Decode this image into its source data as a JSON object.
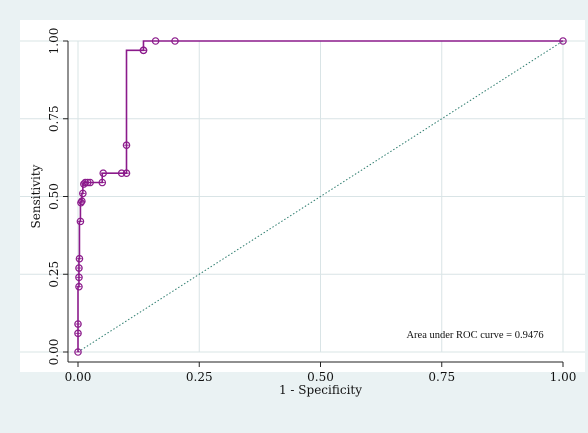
{
  "chart_data": {
    "type": "line",
    "title": "",
    "xlabel": "1 - Specificity",
    "ylabel": "Sensitivity",
    "xlim": [
      0,
      1
    ],
    "ylim": [
      0,
      1
    ],
    "xticks": [
      "0.00",
      "0.25",
      "0.50",
      "0.75",
      "1.00"
    ],
    "yticks": [
      "0.00",
      "0.25",
      "0.50",
      "0.75",
      "1.00"
    ],
    "grid": true,
    "annotation": "Area under ROC curve = 0.9476",
    "series": [
      {
        "style": "step line with circle markers",
        "x": [
          0.0,
          0.0,
          0.0,
          0.002,
          0.002,
          0.002,
          0.003,
          0.005,
          0.006,
          0.008,
          0.01,
          0.012,
          0.015,
          0.02,
          0.025,
          0.05,
          0.052,
          0.09,
          0.1,
          0.1,
          0.135,
          0.135,
          0.16,
          0.2,
          1.0
        ],
        "y": [
          0.0,
          0.06,
          0.09,
          0.21,
          0.24,
          0.27,
          0.3,
          0.42,
          0.48,
          0.485,
          0.51,
          0.54,
          0.545,
          0.545,
          0.545,
          0.545,
          0.575,
          0.575,
          0.575,
          0.665,
          0.97,
          0.97,
          1.0,
          1.0,
          1.0
        ]
      },
      {
        "style": "dotted reference line",
        "x": [
          0,
          1
        ],
        "y": [
          0,
          1
        ]
      }
    ],
    "colors": {
      "curve": "#8b1a8b",
      "reference": "#2e7d6f",
      "grid": "#d9e4e6",
      "plot_bg": "#ffffff",
      "frame_bg": "#eaf2f3"
    }
  }
}
